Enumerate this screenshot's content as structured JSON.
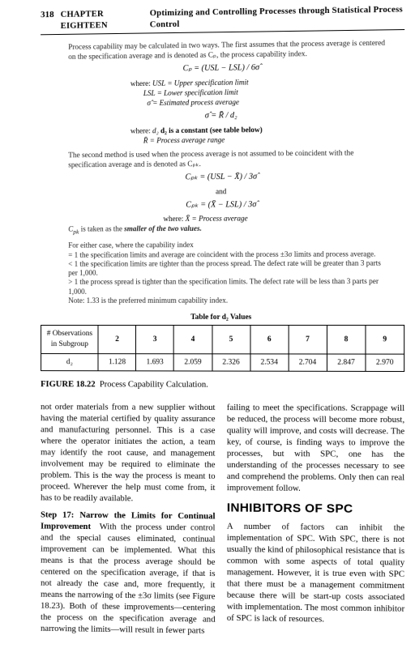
{
  "header": {
    "page_no": "318",
    "chapter": "CHAPTER EIGHTEEN",
    "title": "Optimizing and Controlling Processes through Statistical Process Control"
  },
  "intro": "Process capability may be calculated in two ways. The first assumes that the process average is centered on the specification average and is denoted as Cₚ, the process capability index.",
  "formula_cp": "Cₚ = (USL − LSL) / 6σ̂",
  "where1": {
    "pre": "where:",
    "usl": "USL = Upper specification limit",
    "lsl": "LSL = Lower specification limit",
    "sig": "σ̂ = Estimated process average"
  },
  "formula_sigma": "σ̂ = R̄ / d₂",
  "where2": {
    "pre": "where:",
    "d2": "d₂ is a constant (see table below)",
    "r": "R̄ = Process average range"
  },
  "para_second": "The second method is used when the process average is not assumed to be coincident with the specification average and is denoted as Cₚₖ.",
  "formula_cpk1": "Cₚₖ = (USL − X̄) / 3σ̂",
  "and": "and",
  "formula_cpk2": "Cₚₖ = (X̄ − LSL) / 3σ̂",
  "where3": {
    "pre": "where:",
    "x": "X̄ = Process average"
  },
  "smaller": "Cₚₖ is taken as the smaller of the two values.",
  "forEither": "For either case, where the capability index",
  "eq1": "= 1 the specification limits and average are coincident with the process ±3σ limits and process average.",
  "lt1": "< 1 the specification limits are tighter than the process spread. The defect rate will be greater than 3 parts per 1,000.",
  "gt1": "> 1 the process spread is tighter than the specification limits. The defect rate will be less than 3 parts per 1,000.",
  "noteline": "Note: 1.33 is the preferred minimum capability index.",
  "table": {
    "caption": "Table for d₂ Values",
    "row_label1": "# Observations in Subgroup",
    "row_label2": "d₂",
    "ns": [
      "2",
      "3",
      "4",
      "5",
      "6",
      "7",
      "8",
      "9"
    ],
    "vals": [
      "1.128",
      "1.693",
      "2.059",
      "2.326",
      "2.534",
      "2.704",
      "2.847",
      "2.970"
    ],
    "col_widths_pct": [
      16,
      10.5,
      10.5,
      10.5,
      10.5,
      10.5,
      10.5,
      10.5,
      10.5
    ],
    "border_color": "#000000"
  },
  "figure": {
    "label": "FIGURE 18.22",
    "caption": "Process Capability Calculation."
  },
  "bodyL1": "not order materials from a new supplier without having the material certified by quality assurance and manufacturing personnel. This is a case where the operator initiates the action, a team may identify the root cause, and management involvement may be required to eliminate the problem. This is the way the process is meant to proceed. Wherever the help must come from, it has to be readily available.",
  "step17_num": "Step 17:",
  "step17_title": " Narrow the Limits for Continual Improvement",
  "step17_body": "With the process under control and the special causes eliminated, continual improvement can be implemented. What this means is that the process average should be centered on the specification average, if that is not already the case and, more frequently, it means the narrowing of the ±3σ limits (see Figure 18.23). Both of these improvements—centering the process on the specification average and narrowing the limits—will result in fewer parts",
  "bodyR1": "failing to meet the specifications. Scrappage will be reduced, the process will become more robust, quality will improve, and costs will decrease. The key, of course, is finding ways to improve the processes, but with SPC, one has the understanding of the processes necessary to see and comprehend the problems. Only then can real improvement follow.",
  "section": "INHIBITORS OF SPC",
  "bodyR2": "A number of factors can inhibit the implementation of SPC. With SPC, there is not usually the kind of philosophical resistance that is common with some aspects of total quality management. However, it is true even with SPC that there must be a management commitment because there will be start-up costs associated with implementation. The most common inhibitor of SPC is lack of resources."
}
